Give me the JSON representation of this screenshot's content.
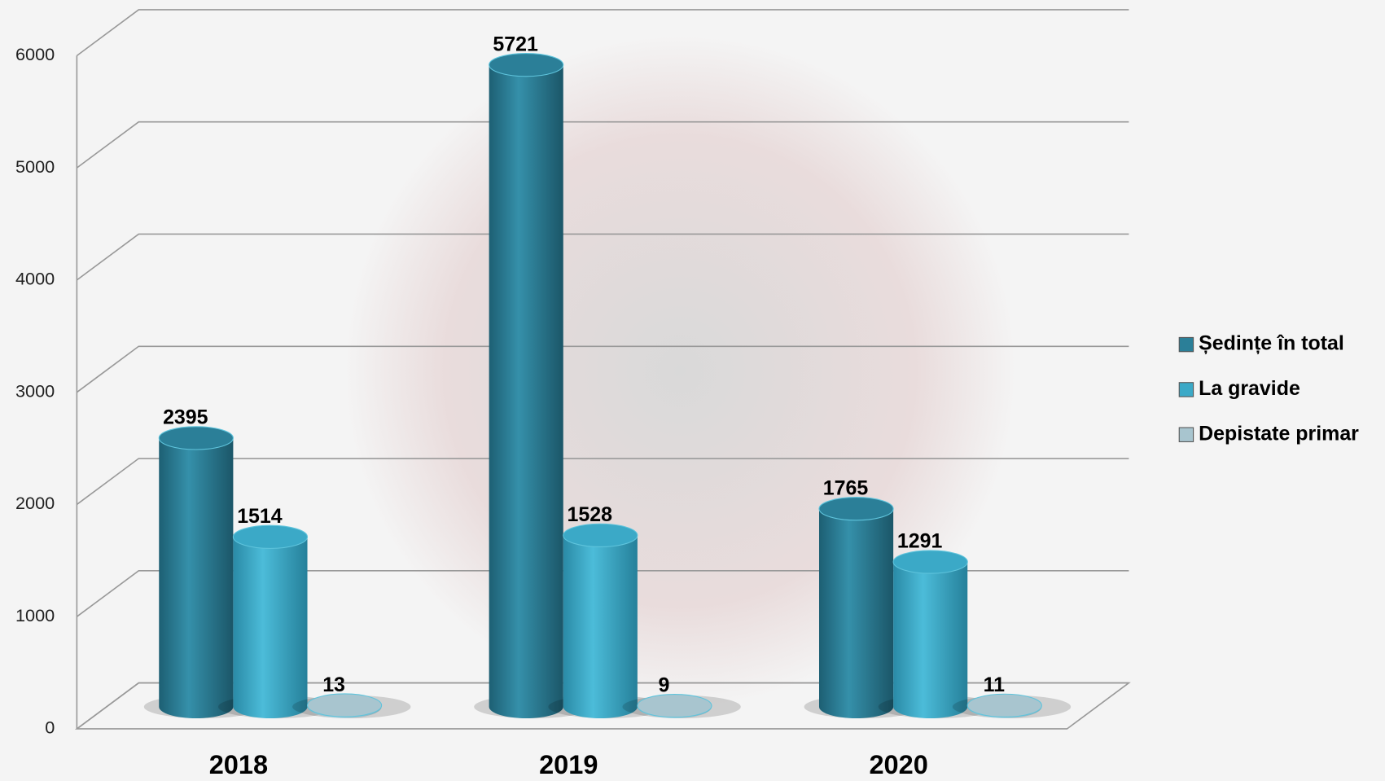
{
  "chart_data": {
    "type": "bar3d",
    "categories": [
      "2018",
      "2019",
      "2020"
    ],
    "series": [
      {
        "name": "Ședințe în total",
        "color": "#2b7f98",
        "values": [
          2395,
          5721,
          1765
        ]
      },
      {
        "name": "La gravide",
        "color": "#3ba9c7",
        "values": [
          1514,
          1528,
          1291
        ]
      },
      {
        "name": "Depistate primar",
        "color": "#a8c5cf",
        "values": [
          13,
          9,
          11
        ]
      }
    ],
    "ylim": [
      0,
      6000
    ],
    "yticks": [
      0,
      1000,
      2000,
      3000,
      4000,
      5000,
      6000
    ],
    "grid": true,
    "legend": "right"
  }
}
